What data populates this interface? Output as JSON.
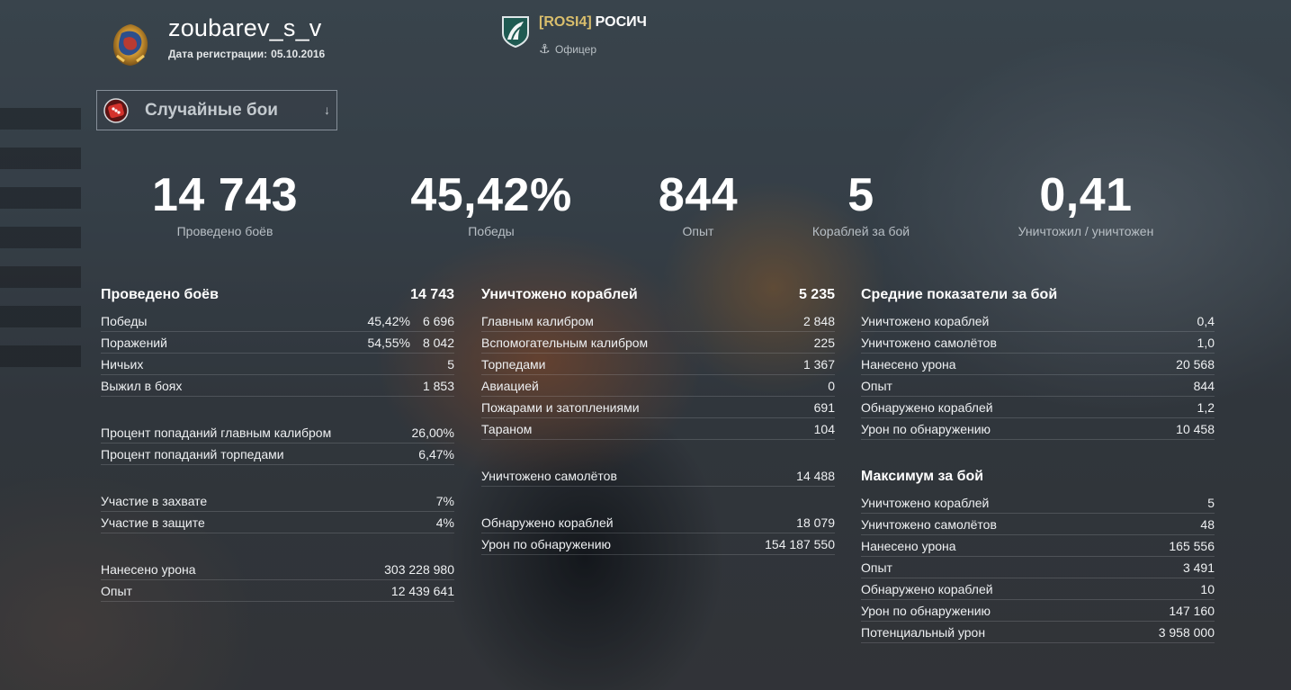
{
  "player": {
    "username": "zoubarev_s_v",
    "reg_label": "Дата регистрации:",
    "reg_date": "05.10.2016",
    "avatar_icon": "player-emblem-icon"
  },
  "clan": {
    "tag": "[ROSI4]",
    "name": "РОСИЧ",
    "role": "Офицер",
    "tag_color": "#d9be6c"
  },
  "mode_selector": {
    "label": "Случайные бои",
    "icon": "random-battles-icon"
  },
  "summary": [
    {
      "value": "14 743",
      "label": "Проведено боёв"
    },
    {
      "value": "45,42%",
      "label": "Победы"
    },
    {
      "value": "844",
      "label": "Опыт"
    },
    {
      "value": "5",
      "label": "Кораблей за бой"
    },
    {
      "value": "0,41",
      "label": "Уничтожил / уничтожен"
    }
  ],
  "col1": {
    "header": {
      "name": "Проведено боёв",
      "value": "14 743"
    },
    "results": [
      {
        "name": "Победы",
        "pct": "45,42%",
        "value": "6 696"
      },
      {
        "name": "Поражений",
        "pct": "54,55%",
        "value": "8 042"
      },
      {
        "name": "Ничьих",
        "value": "5"
      },
      {
        "name": "Выжил в боях",
        "value": "1 853"
      }
    ],
    "accuracy": [
      {
        "name": "Процент попаданий главным калибром",
        "value": "26,00%"
      },
      {
        "name": "Процент попаданий торпедами",
        "value": "6,47%"
      }
    ],
    "bases": [
      {
        "name": "Участие в захвате",
        "value": "7%"
      },
      {
        "name": "Участие в защите",
        "value": "4%"
      }
    ],
    "totals": [
      {
        "name": "Нанесено урона",
        "value": "303 228 980"
      },
      {
        "name": "Опыт",
        "value": "12 439 641"
      }
    ]
  },
  "col2": {
    "header": {
      "name": "Уничтожено кораблей",
      "value": "5 235"
    },
    "kills": [
      {
        "name": "Главным калибром",
        "value": "2 848"
      },
      {
        "name": "Вспомогательным калибром",
        "value": "225"
      },
      {
        "name": "Торпедами",
        "value": "1 367"
      },
      {
        "name": "Авиацией",
        "value": "0"
      },
      {
        "name": "Пожарами и затоплениями",
        "value": "691"
      },
      {
        "name": "Тараном",
        "value": "104"
      }
    ],
    "planes": [
      {
        "name": "Уничтожено самолётов",
        "value": "14 488"
      }
    ],
    "spotting": [
      {
        "name": "Обнаружено кораблей",
        "value": "18 079"
      },
      {
        "name": "Урон по обнаружению",
        "value": "154 187 550"
      }
    ]
  },
  "col3": {
    "avg_header": "Средние показатели за бой",
    "avg": [
      {
        "name": "Уничтожено кораблей",
        "value": "0,4"
      },
      {
        "name": "Уничтожено самолётов",
        "value": "1,0"
      },
      {
        "name": "Нанесено урона",
        "value": "20 568"
      },
      {
        "name": "Опыт",
        "value": "844"
      },
      {
        "name": "Обнаружено кораблей",
        "value": "1,2"
      },
      {
        "name": "Урон по обнаружению",
        "value": "10 458"
      }
    ],
    "max_header": "Максимум за бой",
    "max": [
      {
        "name": "Уничтожено кораблей",
        "value": "5"
      },
      {
        "name": "Уничтожено самолётов",
        "value": "48"
      },
      {
        "name": "Нанесено урона",
        "value": "165 556"
      },
      {
        "name": "Опыт",
        "value": "3 491"
      },
      {
        "name": "Обнаружено кораблей",
        "value": "10"
      },
      {
        "name": "Урон по обнаружению",
        "value": "147 160"
      },
      {
        "name": "Потенциальный урон",
        "value": "3 958 000"
      }
    ]
  }
}
